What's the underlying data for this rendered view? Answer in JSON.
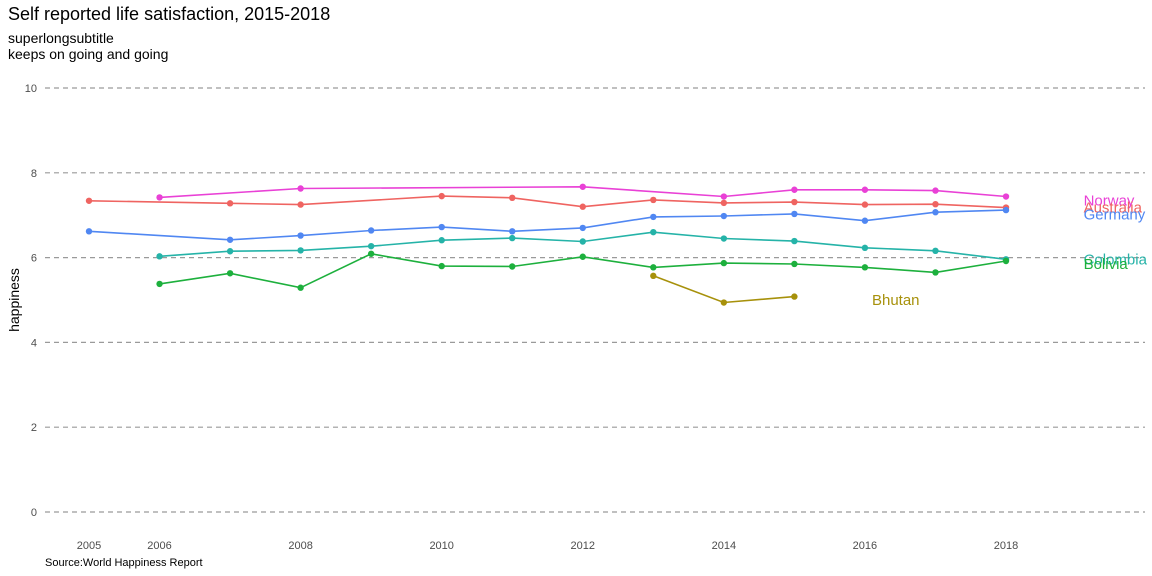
{
  "chart_data": {
    "type": "line",
    "title": "Self reported life satisfaction, 2015-2018",
    "subtitle_lines": [
      "superlongsubtitle",
      "keeps on going and going"
    ],
    "caption": "Source:World Happiness Report",
    "xlabel": "",
    "ylabel": "happiness",
    "x_ticks": [
      2005,
      2006,
      2008,
      2010,
      2012,
      2014,
      2016,
      2018
    ],
    "y_ticks": [
      0,
      2,
      4,
      6,
      8,
      10
    ],
    "xlim": [
      2005,
      2018
    ],
    "ylim": [
      0,
      10
    ],
    "grid": "horizontal dashed",
    "legend": "direct labels at right",
    "series": [
      {
        "name": "Norway",
        "color": "#E941D6",
        "x": [
          2006,
          2008,
          2012,
          2014,
          2015,
          2016,
          2017,
          2018
        ],
        "y": [
          7.42,
          7.63,
          7.67,
          7.44,
          7.6,
          7.6,
          7.58,
          7.44
        ]
      },
      {
        "name": "Australia",
        "color": "#EF6461",
        "x": [
          2005,
          2007,
          2008,
          2010,
          2011,
          2012,
          2013,
          2014,
          2015,
          2016,
          2017,
          2018
        ],
        "y": [
          7.34,
          7.28,
          7.25,
          7.45,
          7.41,
          7.2,
          7.36,
          7.29,
          7.31,
          7.25,
          7.26,
          7.18
        ]
      },
      {
        "name": "Germany",
        "color": "#5087F2",
        "x": [
          2005,
          2007,
          2008,
          2009,
          2010,
          2011,
          2012,
          2013,
          2014,
          2015,
          2016,
          2017,
          2018
        ],
        "y": [
          6.62,
          6.42,
          6.52,
          6.64,
          6.72,
          6.62,
          6.7,
          6.96,
          6.98,
          7.03,
          6.87,
          7.07,
          7.12
        ]
      },
      {
        "name": "Colombia",
        "color": "#25B3A8",
        "x": [
          2006,
          2007,
          2008,
          2009,
          2010,
          2011,
          2012,
          2013,
          2014,
          2015,
          2016,
          2017,
          2018
        ],
        "y": [
          6.03,
          6.15,
          6.17,
          6.27,
          6.41,
          6.46,
          6.38,
          6.6,
          6.45,
          6.39,
          6.23,
          6.16,
          5.96
        ]
      },
      {
        "name": "Bolivia",
        "color": "#1DB03D",
        "x": [
          2006,
          2007,
          2008,
          2009,
          2010,
          2011,
          2012,
          2013,
          2014,
          2015,
          2016,
          2017,
          2018
        ],
        "y": [
          5.38,
          5.63,
          5.29,
          6.09,
          5.8,
          5.79,
          6.02,
          5.77,
          5.87,
          5.85,
          5.77,
          5.65,
          5.92
        ]
      },
      {
        "name": "Bhutan",
        "color": "#A7910B",
        "x": [
          2013,
          2014,
          2015
        ],
        "y": [
          5.57,
          4.94,
          5.08
        ]
      }
    ],
    "direct_labels": [
      {
        "series": "Norway",
        "x": 2019.1,
        "y": 7.35
      },
      {
        "series": "Australia",
        "x": 2019.1,
        "y": 7.18
      },
      {
        "series": "Germany",
        "x": 2019.1,
        "y": 7.02
      },
      {
        "series": "Colombia",
        "x": 2019.1,
        "y": 5.95
      },
      {
        "series": "Bolivia",
        "x": 2019.1,
        "y": 5.85
      },
      {
        "series": "Bhutan",
        "x": 2016.1,
        "y": 5.0
      }
    ]
  }
}
